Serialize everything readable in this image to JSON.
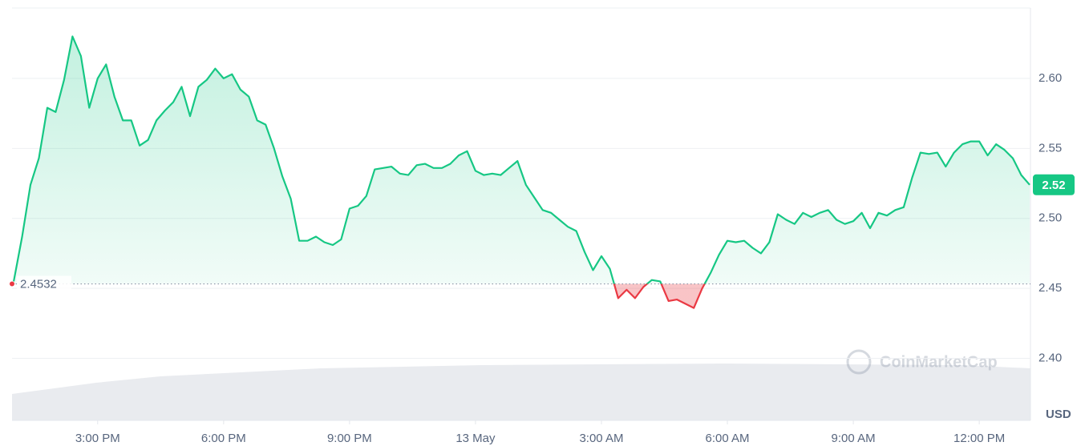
{
  "chart_data": {
    "type": "line",
    "x": [
      13,
      13.2,
      13.4,
      13.6,
      13.8,
      14,
      14.2,
      14.4,
      14.6,
      14.8,
      15,
      15.2,
      15.4,
      15.6,
      15.8,
      16,
      16.2,
      16.4,
      16.6,
      16.8,
      17,
      17.2,
      17.4,
      17.6,
      17.8,
      18,
      18.2,
      18.4,
      18.6,
      18.8,
      19,
      19.2,
      19.4,
      19.6,
      19.8,
      20,
      20.2,
      20.4,
      20.6,
      20.8,
      21,
      21.2,
      21.4,
      21.6,
      21.8,
      22,
      22.2,
      22.4,
      22.6,
      22.8,
      23,
      23.2,
      23.4,
      23.6,
      23.8,
      24,
      24.2,
      24.4,
      24.6,
      24.8,
      25,
      25.2,
      25.4,
      25.6,
      25.8,
      26,
      26.2,
      26.4,
      26.6,
      26.8,
      27,
      27.2,
      27.4,
      27.6,
      27.8,
      28,
      28.2,
      28.4,
      28.6,
      28.8,
      29,
      29.2,
      29.4,
      29.6,
      29.8,
      30,
      30.2,
      30.4,
      30.6,
      30.8,
      31,
      31.2,
      31.4,
      31.6,
      31.8,
      32,
      32.2,
      32.4,
      32.6,
      32.8,
      33,
      33.2,
      33.4,
      33.6,
      33.8,
      34,
      34.2,
      34.4,
      34.6,
      34.8,
      35,
      35.2,
      35.4,
      35.6,
      35.8,
      36,
      36.2,
      36.4,
      36.6,
      36.8,
      37,
      37.2
    ],
    "values": [
      2.455,
      2.487,
      2.524,
      2.543,
      2.579,
      2.576,
      2.599,
      2.63,
      2.616,
      2.579,
      2.6,
      2.61,
      2.587,
      2.57,
      2.57,
      2.552,
      2.556,
      2.57,
      2.577,
      2.583,
      2.594,
      2.573,
      2.594,
      2.599,
      2.607,
      2.6,
      2.603,
      2.592,
      2.587,
      2.57,
      2.567,
      2.55,
      2.53,
      2.514,
      2.484,
      2.484,
      2.487,
      2.483,
      2.481,
      2.485,
      2.507,
      2.509,
      2.516,
      2.535,
      2.536,
      2.537,
      2.532,
      2.531,
      2.538,
      2.539,
      2.536,
      2.536,
      2.539,
      2.545,
      2.548,
      2.534,
      2.531,
      2.532,
      2.531,
      2.536,
      2.541,
      2.524,
      2.515,
      2.506,
      2.504,
      2.499,
      2.494,
      2.491,
      2.476,
      2.463,
      2.473,
      2.464,
      2.443,
      2.449,
      2.443,
      2.451,
      2.456,
      2.455,
      2.441,
      2.442,
      2.439,
      2.436,
      2.45,
      2.461,
      2.474,
      2.484,
      2.483,
      2.484,
      2.479,
      2.475,
      2.483,
      2.503,
      2.499,
      2.496,
      2.504,
      2.501,
      2.504,
      2.506,
      2.499,
      2.496,
      2.498,
      2.504,
      2.493,
      2.504,
      2.502,
      2.506,
      2.508,
      2.529,
      2.547,
      2.546,
      2.547,
      2.537,
      2.547,
      2.553,
      2.555,
      2.555,
      2.545,
      2.553,
      2.549,
      2.543,
      2.531,
      2.524
    ],
    "color": "#16c784",
    "below_color": "#ea3943",
    "baseline": 2.4532,
    "current_price": {
      "value": 2.524,
      "label": "2.52"
    },
    "xlim": [
      12.96,
      37.22
    ],
    "xticks": [
      {
        "value": 15,
        "label": "3:00 PM"
      },
      {
        "value": 18,
        "label": "6:00 PM"
      },
      {
        "value": 21,
        "label": "9:00 PM"
      },
      {
        "value": 24,
        "label": "13 May"
      },
      {
        "value": 27,
        "label": "3:00 AM"
      },
      {
        "value": 30,
        "label": "6:00 AM"
      },
      {
        "value": 33,
        "label": "9:00 AM"
      },
      {
        "value": 36,
        "label": "12:00 PM"
      }
    ],
    "ylim": [
      2.3557,
      2.6503
    ],
    "yticks": [
      {
        "value": 2.4,
        "label": "2.40"
      },
      {
        "value": 2.45,
        "label": "2.45"
      },
      {
        "value": 2.5,
        "label": "2.50"
      },
      {
        "value": 2.55,
        "label": "2.55"
      },
      {
        "value": 2.6,
        "label": "2.60"
      }
    ],
    "y_axis_label": "USD",
    "watermark": "CoinMarketCap",
    "grid": true
  }
}
